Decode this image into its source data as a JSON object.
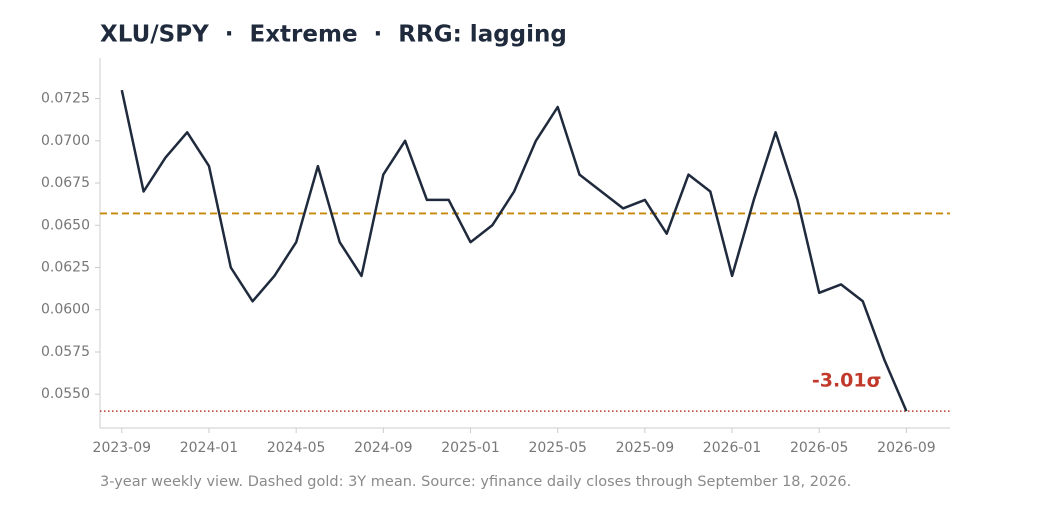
{
  "chart_data": {
    "type": "line",
    "title": "XLU/SPY  ·  Extreme  ·  RRG: lagging",
    "footnote": "3-year weekly view. Dashed gold: 3Y mean. Source: yfinance daily closes through September 18, 2026.",
    "x": [
      "2023-09",
      "2023-10",
      "2023-11",
      "2023-12",
      "2024-01",
      "2024-02",
      "2024-03",
      "2024-04",
      "2024-05",
      "2024-06",
      "2024-07",
      "2024-08",
      "2024-09",
      "2024-10",
      "2024-11",
      "2024-12",
      "2025-01",
      "2025-02",
      "2025-03",
      "2025-04",
      "2025-05",
      "2025-06",
      "2025-07",
      "2025-08",
      "2025-09",
      "2025-10",
      "2025-11",
      "2025-12",
      "2026-01",
      "2026-02",
      "2026-03",
      "2026-04",
      "2026-05",
      "2026-06",
      "2026-07",
      "2026-08",
      "2026-09"
    ],
    "series": [
      {
        "name": "XLU/SPY",
        "color": "#1f2a3c",
        "values": [
          0.073,
          0.067,
          0.069,
          0.0705,
          0.0685,
          0.0625,
          0.0605,
          0.062,
          0.064,
          0.0685,
          0.064,
          0.062,
          0.068,
          0.07,
          0.0665,
          0.0665,
          0.064,
          0.065,
          0.067,
          0.07,
          0.072,
          0.068,
          0.067,
          0.066,
          0.0665,
          0.0645,
          0.068,
          0.067,
          0.062,
          0.0665,
          0.0705,
          0.0665,
          0.061,
          0.0615,
          0.0605,
          0.057,
          0.054
        ]
      }
    ],
    "mean_line": {
      "value": 0.0657,
      "color": "#c8860a"
    },
    "extreme_line": {
      "value": 0.054,
      "color": "#c0392b"
    },
    "annotation": {
      "text": "-3.01σ",
      "color": "#c0392b"
    },
    "xlim": [
      "2023-08",
      "2026-11"
    ],
    "xticks": [
      "2023-09",
      "2024-01",
      "2024-05",
      "2024-09",
      "2025-01",
      "2025-05",
      "2025-09",
      "2026-01",
      "2026-05",
      "2026-09"
    ],
    "ylim": [
      0.053,
      0.0749
    ],
    "yticks": [
      {
        "value": 0.055,
        "label": "0.0550"
      },
      {
        "value": 0.0575,
        "label": "0.0575"
      },
      {
        "value": 0.06,
        "label": "0.0600"
      },
      {
        "value": 0.0625,
        "label": "0.0625"
      },
      {
        "value": 0.065,
        "label": "0.0650"
      },
      {
        "value": 0.0675,
        "label": "0.0675"
      },
      {
        "value": 0.07,
        "label": "0.0700"
      },
      {
        "value": 0.0725,
        "label": "0.0725"
      }
    ]
  }
}
